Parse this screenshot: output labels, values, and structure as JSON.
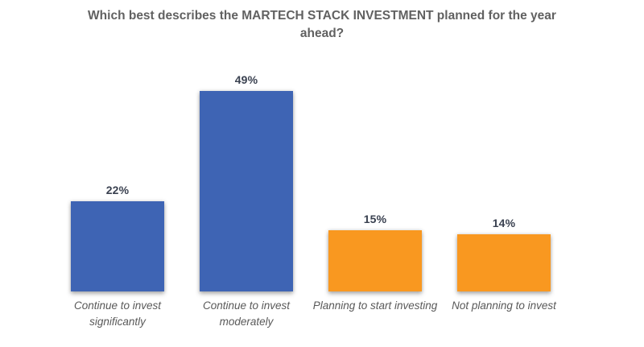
{
  "chart_data": {
    "type": "bar",
    "title": "Which best describes the MARTECH STACK INVESTMENT planned for the year ahead?",
    "categories": [
      "Continue to invest significantly",
      "Continue to invest moderately",
      "Planning to start investing",
      "Not planning to invest"
    ],
    "values": [
      22,
      49,
      15,
      14
    ],
    "value_labels": [
      "22%",
      "49%",
      "15%",
      "14%"
    ],
    "bar_colors": [
      "#3e64b4",
      "#3e64b4",
      "#f99820",
      "#f99820"
    ],
    "xlabel": "",
    "ylabel": "",
    "ylim": [
      0,
      55
    ],
    "grid": false,
    "legend": false,
    "data_labels_position": "above-bar"
  },
  "colors": {
    "blue_bar": "#3e64b4",
    "orange_bar": "#f99820",
    "title_text": "#616161",
    "value_label_text": "#3a4150",
    "category_label_text": "#595959",
    "background": "#ffffff"
  }
}
